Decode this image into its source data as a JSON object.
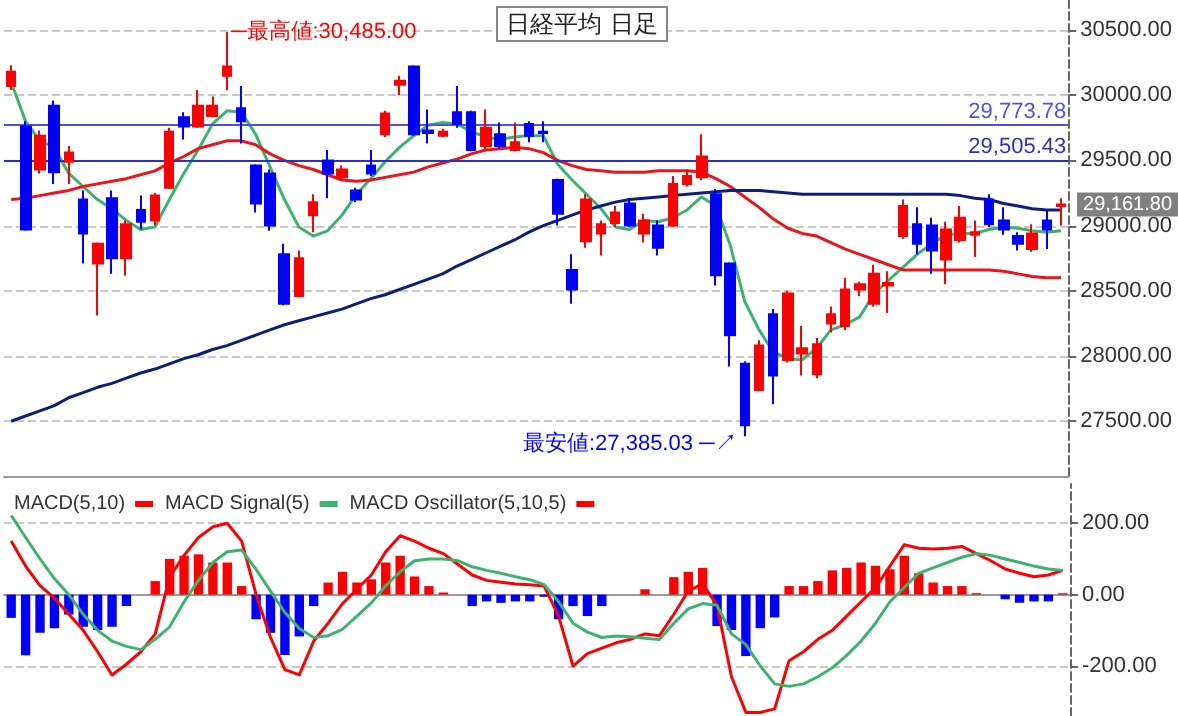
{
  "chart_data": [
    {
      "type": "candlestick",
      "title": "日経平均 日足",
      "categories": [
        null,
        null,
        null,
        null,
        null,
        null,
        null,
        null,
        null,
        null,
        null,
        null,
        null,
        null,
        null,
        null,
        null,
        null,
        null,
        null,
        null,
        null,
        null,
        null,
        null,
        null,
        null,
        null,
        null,
        null,
        null,
        null,
        null,
        null,
        null,
        null,
        null,
        null,
        null,
        null,
        null,
        null,
        null,
        null,
        null,
        null,
        null,
        null,
        null,
        null,
        null,
        null,
        null,
        null,
        null,
        null,
        null,
        null,
        null,
        null,
        null,
        null,
        null,
        null,
        null,
        null,
        null,
        null,
        null,
        null,
        null,
        null,
        null,
        null
      ],
      "ohlc": [
        [
          30070,
          30230,
          30040,
          30180
        ],
        [
          29760,
          29800,
          28960,
          28970
        ],
        [
          29430,
          29730,
          29400,
          29690
        ],
        [
          29920,
          29960,
          29320,
          29410
        ],
        [
          29490,
          29610,
          29320,
          29560
        ],
        [
          29200,
          29270,
          28710,
          28940
        ],
        [
          28710,
          28870,
          28310,
          28860
        ],
        [
          29210,
          29270,
          28630,
          28750
        ],
        [
          28750,
          29040,
          28615,
          29010
        ],
        [
          29120,
          29230,
          28970,
          29030
        ],
        [
          29040,
          29250,
          29000,
          29230
        ],
        [
          29290,
          29750,
          29280,
          29720
        ],
        [
          29830,
          29870,
          29660,
          29760
        ],
        [
          29760,
          30040,
          29750,
          29920
        ],
        [
          29840,
          29990,
          29830,
          29920
        ],
        [
          30150,
          30485,
          30040,
          30220
        ],
        [
          29900,
          30070,
          29630,
          29800
        ],
        [
          29460,
          29470,
          29100,
          29170
        ],
        [
          29400,
          29430,
          28960,
          29000
        ],
        [
          28780,
          28860,
          28390,
          28400
        ],
        [
          28460,
          28810,
          28450,
          28750
        ],
        [
          29080,
          29240,
          28950,
          29180
        ],
        [
          29500,
          29580,
          29210,
          29400
        ],
        [
          29370,
          29460,
          29350,
          29430
        ],
        [
          29270,
          29290,
          29180,
          29200
        ],
        [
          29460,
          29580,
          29380,
          29400
        ],
        [
          29700,
          29880,
          29680,
          29860
        ],
        [
          30080,
          30150,
          30000,
          30110
        ],
        [
          30220,
          30230,
          29690,
          29700
        ],
        [
          29730,
          29890,
          29630,
          29710
        ],
        [
          29690,
          29740,
          29680,
          29720
        ],
        [
          29870,
          30070,
          29750,
          29780
        ],
        [
          29870,
          29880,
          29570,
          29580
        ],
        [
          29610,
          29890,
          29580,
          29750
        ],
        [
          29700,
          29790,
          29590,
          29610
        ],
        [
          29580,
          29790,
          29570,
          29640
        ],
        [
          29780,
          29800,
          29640,
          29690
        ],
        [
          29720,
          29800,
          29640,
          29710
        ],
        [
          29350,
          29360,
          29000,
          29090
        ],
        [
          28660,
          28780,
          28400,
          28510
        ],
        [
          28880,
          29240,
          28830,
          29200
        ],
        [
          28940,
          29040,
          28770,
          29010
        ],
        [
          29020,
          29150,
          28990,
          29100
        ],
        [
          29170,
          29210,
          28990,
          29000
        ],
        [
          28940,
          29090,
          28870,
          29040
        ],
        [
          29000,
          29040,
          28770,
          28830
        ],
        [
          29000,
          29380,
          28990,
          29320
        ],
        [
          29320,
          29430,
          29300,
          29380
        ],
        [
          29370,
          29700,
          29350,
          29530
        ],
        [
          29240,
          29280,
          28540,
          28620
        ],
        [
          28710,
          28720,
          27920,
          28160
        ],
        [
          27940,
          27960,
          27385.03,
          27470
        ],
        [
          27740,
          28120,
          27730,
          28080
        ],
        [
          28320,
          28360,
          27630,
          27850
        ],
        [
          27970,
          28500,
          27950,
          28480
        ],
        [
          28020,
          28230,
          27850,
          28060
        ],
        [
          27860,
          28140,
          27830,
          28090
        ],
        [
          28250,
          28380,
          28180,
          28320
        ],
        [
          28230,
          28600,
          28200,
          28510
        ],
        [
          28510,
          28570,
          28460,
          28550
        ],
        [
          28400,
          28700,
          28380,
          28630
        ],
        [
          28540,
          28650,
          28330,
          28560
        ],
        [
          28920,
          29200,
          28900,
          29150
        ],
        [
          29010,
          29140,
          28780,
          28860
        ],
        [
          29000,
          29060,
          28630,
          28810
        ],
        [
          28740,
          29030,
          28550,
          28970
        ],
        [
          28890,
          29150,
          28870,
          29060
        ],
        [
          28930,
          29040,
          28760,
          28950
        ],
        [
          29200,
          29240,
          28990,
          29010
        ],
        [
          29040,
          29140,
          28930,
          28970
        ],
        [
          28920,
          28950,
          28810,
          28860
        ],
        [
          28820,
          29010,
          28800,
          28940
        ],
        [
          29040,
          29120,
          28820,
          28970
        ],
        [
          29150,
          29210,
          29000,
          29161.8
        ]
      ],
      "colors": [
        "#ff0000",
        "#0000ff",
        "#ff0000",
        "#0000ff",
        "#ff0000",
        "#0000ff",
        "#ff0000",
        "#0000ff",
        "#ff0000",
        "#0000ff",
        "#ff0000",
        "#ff0000",
        "#0000ff",
        "#ff0000",
        "#ff0000",
        "#ff0000",
        "#0000ff",
        "#0000ff",
        "#0000ff",
        "#0000ff",
        "#ff0000",
        "#ff0000",
        "#0000ff",
        "#ff0000",
        "#0000ff",
        "#0000ff",
        "#ff0000",
        "#ff0000",
        "#0000ff",
        "#0000ff",
        "#ff0000",
        "#0000ff",
        "#0000ff",
        "#ff0000",
        "#0000ff",
        "#ff0000",
        "#0000ff",
        "#0000ff",
        "#0000ff",
        "#0000ff",
        "#ff0000",
        "#ff0000",
        "#ff0000",
        "#0000ff",
        "#ff0000",
        "#0000ff",
        "#ff0000",
        "#ff0000",
        "#ff0000",
        "#0000ff",
        "#0000ff",
        "#0000ff",
        "#ff0000",
        "#0000ff",
        "#ff0000",
        "#ff0000",
        "#ff0000",
        "#ff0000",
        "#ff0000",
        "#ff0000",
        "#ff0000",
        "#ff0000",
        "#ff0000",
        "#0000ff",
        "#0000ff",
        "#ff0000",
        "#ff0000",
        "#ff0000",
        "#0000ff",
        "#0000ff",
        "#0000ff",
        "#ff0000",
        "#0000ff",
        "#ff0000"
      ],
      "series": [
        {
          "type": "line",
          "color": "#3cb371",
          "values": [
            30100,
            29800,
            29650,
            29600,
            29400,
            29300,
            29200,
            29130,
            29040,
            28970,
            28990,
            29200,
            29400,
            29580,
            29780,
            29880,
            29870,
            29700,
            29450,
            29200,
            28990,
            28920,
            28960,
            29080,
            29240,
            29360,
            29490,
            29600,
            29690,
            29770,
            29790,
            29780,
            29720,
            29680,
            29660,
            29680,
            29690,
            29690,
            29470,
            29350,
            29240,
            29130,
            28990,
            28970,
            29040,
            29030,
            29060,
            29120,
            29220,
            29150,
            28850,
            28420,
            28200,
            28030,
            27980,
            27970,
            28060,
            28200,
            28240,
            28300,
            28480,
            28580,
            28680,
            28780,
            28860,
            28930,
            28940,
            28940,
            28970,
            28990,
            28980,
            28960,
            28950,
            28960
          ]
        },
        {
          "type": "line",
          "color": "#e8161a",
          "values": [
            29200,
            29210,
            29230,
            29250,
            29270,
            29300,
            29320,
            29340,
            29360,
            29390,
            29420,
            29480,
            29530,
            29590,
            29620,
            29650,
            29650,
            29620,
            29550,
            29500,
            29460,
            29430,
            29390,
            29350,
            29340,
            29350,
            29370,
            29390,
            29410,
            29450,
            29480,
            29510,
            29550,
            29580,
            29590,
            29600,
            29590,
            29560,
            29500,
            29460,
            29430,
            29420,
            29410,
            29410,
            29410,
            29420,
            29420,
            29420,
            29410,
            29360,
            29300,
            29220,
            29140,
            29050,
            28980,
            28940,
            28920,
            28870,
            28820,
            28780,
            28740,
            28700,
            28660,
            28660,
            28660,
            28660,
            28660,
            28660,
            28660,
            28650,
            28630,
            28610,
            28600,
            28600
          ]
        },
        {
          "type": "line",
          "color": "#0d1f7a",
          "values": [
            27500,
            27540,
            27580,
            27620,
            27680,
            27720,
            27760,
            27790,
            27830,
            27870,
            27900,
            27940,
            27980,
            28010,
            28050,
            28080,
            28120,
            28160,
            28200,
            28240,
            28270,
            28300,
            28330,
            28360,
            28400,
            28440,
            28470,
            28510,
            28550,
            28590,
            28630,
            28690,
            28740,
            28790,
            28840,
            28890,
            28950,
            29000,
            29040,
            29080,
            29120,
            29150,
            29180,
            29200,
            29210,
            29220,
            29230,
            29240,
            29250,
            29260,
            29270,
            29270,
            29270,
            29260,
            29250,
            29240,
            29240,
            29240,
            29240,
            29240,
            29240,
            29240,
            29240,
            29240,
            29240,
            29240,
            29230,
            29210,
            29200,
            29170,
            29150,
            29130,
            29120,
            29120
          ]
        }
      ],
      "ylim": [
        27080,
        30730
      ],
      "yticks": [
        {
          "value": 27500,
          "label": "27500.00"
        },
        {
          "value": 28000,
          "label": "28000.00"
        },
        {
          "value": 28500,
          "label": "28500.00"
        },
        {
          "value": 29000,
          "label": "29000.00"
        },
        {
          "value": 29500,
          "label": "29500.00"
        },
        {
          "value": 30000,
          "label": "30000.00"
        },
        {
          "value": 30500,
          "label": "30500.00"
        }
      ],
      "ref_lines": [
        {
          "axis": "y",
          "value": 29773.78,
          "label": "29,773.78",
          "color": "#5050e0"
        },
        {
          "axis": "y",
          "value": 29505.43,
          "label": "29,505.43",
          "color": "#3030c0"
        }
      ],
      "annotations": [
        "─最高値:30,485.00",
        "最安値:27,385.03 ─↗",
        "29,161.80"
      ],
      "grid": "y",
      "tick_labels": "y"
    },
    {
      "type": "bar",
      "categories": [
        null,
        null,
        null,
        null,
        null,
        null,
        null,
        null,
        null,
        null,
        null,
        null,
        null,
        null,
        null,
        null,
        null,
        null,
        null,
        null,
        null,
        null,
        null,
        null,
        null,
        null,
        null,
        null,
        null,
        null,
        null,
        null,
        null,
        null,
        null,
        null,
        null,
        null,
        null,
        null,
        null,
        null,
        null,
        null,
        null,
        null,
        null,
        null,
        null,
        null,
        null,
        null,
        null,
        null,
        null,
        null,
        null,
        null,
        null,
        null,
        null,
        null,
        null,
        null,
        null,
        null,
        null,
        null,
        null,
        null,
        null,
        null,
        null,
        null
      ],
      "series": [
        {
          "name": "MACD(5,10)",
          "type": "line",
          "color": "#ff0000",
          "values": [
            150,
            80,
            25,
            -10,
            -55,
            -100,
            -160,
            -225,
            -195,
            -160,
            -110,
            50,
            110,
            160,
            190,
            200,
            150,
            0,
            -120,
            -210,
            -225,
            -130,
            -80,
            -25,
            15,
            55,
            120,
            165,
            150,
            130,
            115,
            85,
            55,
            40,
            35,
            30,
            28,
            24,
            -60,
            -200,
            -165,
            -150,
            -135,
            -125,
            -110,
            -115,
            -55,
            10,
            30,
            -30,
            -230,
            -330,
            -330,
            -320,
            -185,
            -160,
            -125,
            -100,
            -60,
            -20,
            20,
            80,
            140,
            130,
            128,
            130,
            135,
            115,
            95,
            72,
            60,
            50,
            55,
            68
          ]
        },
        {
          "name": "MACD Signal(5)",
          "type": "line",
          "color": "#3cb371",
          "values": [
            222,
            160,
            100,
            45,
            0,
            -55,
            -100,
            -130,
            -145,
            -154,
            -125,
            -90,
            -20,
            40,
            90,
            120,
            125,
            71,
            10,
            -50,
            -95,
            -120,
            -115,
            -97,
            -60,
            -23,
            25,
            64,
            95,
            100,
            100,
            95,
            78,
            68,
            60,
            50,
            42,
            28,
            -20,
            -80,
            -105,
            -120,
            -116,
            -118,
            -122,
            -126,
            -80,
            -40,
            -25,
            -30,
            -110,
            -140,
            -200,
            -250,
            -257,
            -250,
            -230,
            -205,
            -170,
            -130,
            -80,
            -20,
            20,
            60,
            75,
            90,
            105,
            115,
            110,
            100,
            90,
            80,
            72,
            68
          ]
        },
        {
          "name": "MACD Oscillator(5,10,5)",
          "type": "bar",
          "color": "#ff0000",
          "values": [
            -65,
            -170,
            -107,
            -94,
            -56,
            -90,
            -99,
            -90,
            -32,
            0,
            38,
            100,
            109,
            113,
            90,
            90,
            24,
            -69,
            -107,
            -169,
            -117,
            -32,
            34,
            64,
            34,
            43,
            90,
            109,
            51,
            24,
            6,
            0,
            -32,
            -19,
            -23,
            -19,
            -19,
            -6,
            -69,
            -32,
            -60,
            -32,
            0,
            0,
            15,
            0,
            49,
            64,
            75,
            -88,
            -99,
            -172,
            -94,
            -64,
            24,
            24,
            38,
            68,
            75,
            90,
            81,
            71,
            109,
            60,
            34,
            24,
            24,
            4,
            0,
            -13,
            -23,
            -19,
            -19,
            4
          ],
          "colors": [
            "#0000ff",
            "#0000ff",
            "#0000ff",
            "#0000ff",
            "#0000ff",
            "#0000ff",
            "#0000ff",
            "#0000ff",
            "#0000ff",
            "#ff0000",
            "#ff0000",
            "#ff0000",
            "#ff0000",
            "#ff0000",
            "#ff0000",
            "#ff0000",
            "#ff0000",
            "#0000ff",
            "#0000ff",
            "#0000ff",
            "#0000ff",
            "#0000ff",
            "#ff0000",
            "#ff0000",
            "#ff0000",
            "#ff0000",
            "#ff0000",
            "#ff0000",
            "#ff0000",
            "#ff0000",
            "#ff0000",
            "#ff0000",
            "#0000ff",
            "#0000ff",
            "#0000ff",
            "#0000ff",
            "#0000ff",
            "#0000ff",
            "#0000ff",
            "#0000ff",
            "#0000ff",
            "#0000ff",
            "#ff0000",
            "#ff0000",
            "#ff0000",
            "#ff0000",
            "#ff0000",
            "#ff0000",
            "#ff0000",
            "#0000ff",
            "#0000ff",
            "#0000ff",
            "#0000ff",
            "#0000ff",
            "#ff0000",
            "#ff0000",
            "#ff0000",
            "#ff0000",
            "#ff0000",
            "#ff0000",
            "#ff0000",
            "#ff0000",
            "#ff0000",
            "#ff0000",
            "#ff0000",
            "#ff0000",
            "#ff0000",
            "#ff0000",
            "#ff0000",
            "#0000ff",
            "#0000ff",
            "#0000ff",
            "#0000ff",
            "#ff0000"
          ]
        }
      ],
      "ylim": [
        -340,
        310
      ],
      "yticks": [
        {
          "value": -200,
          "label": "-200.00"
        },
        {
          "value": 0,
          "label": "0.00"
        },
        {
          "value": 200,
          "label": "200.00"
        }
      ],
      "legend": "top left",
      "grid": "y",
      "tick_labels": "y"
    }
  ]
}
